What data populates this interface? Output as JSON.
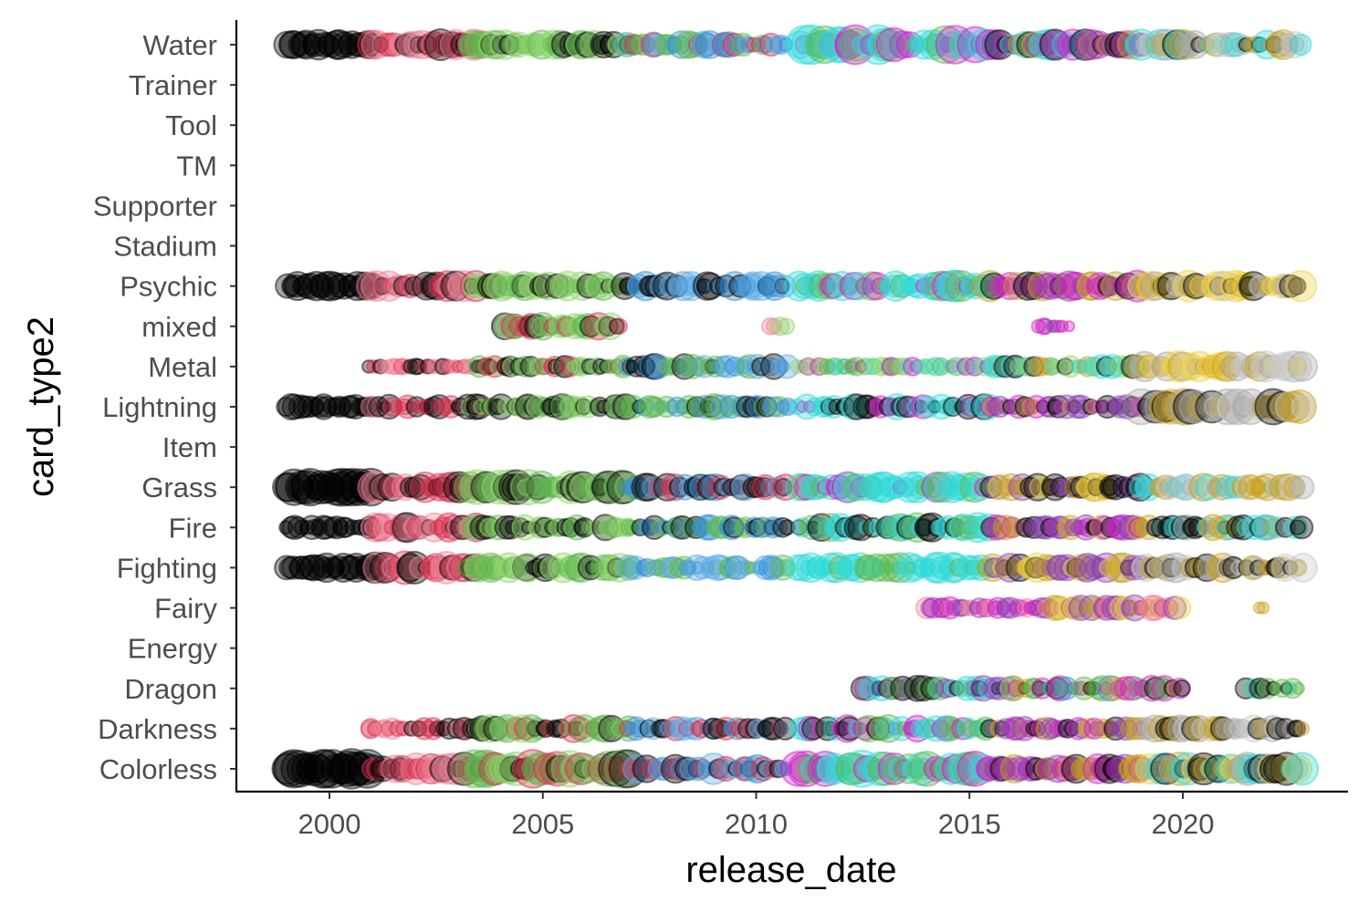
{
  "chart_data": {
    "type": "scatter",
    "title": "",
    "xlabel": "release_date",
    "ylabel": "card_type2",
    "xlim": [
      1997.8,
      2023.8
    ],
    "x_ticks": [
      2000,
      2005,
      2010,
      2015,
      2020
    ],
    "categories": [
      "Colorless",
      "Darkness",
      "Dragon",
      "Energy",
      "Fairy",
      "Fighting",
      "Fire",
      "Grass",
      "Item",
      "Lightning",
      "Metal",
      "mixed",
      "Psychic",
      "Stadium",
      "Supporter",
      "TM",
      "Tool",
      "Trainer",
      "Water"
    ],
    "grid": false,
    "legend": "none",
    "marker": "circle",
    "alpha": 0.35,
    "colors": {
      "black": "#000000",
      "red": "#d62d4b",
      "pink": "#f08096",
      "green": "#5cb84a",
      "lightgreen": "#8ed46a",
      "blue": "#2e8fd6",
      "lightblue": "#5aa8e8",
      "cyan": "#2dd9d9",
      "purple": "#8a3fb0",
      "magenta": "#cc1fc4",
      "gold": "#c8a020",
      "yellow": "#f0d040",
      "grey": "#a8a8a8",
      "silver": "#c8c8c8"
    },
    "series": [
      {
        "category": "Water",
        "segments": [
          {
            "x0": 1999.0,
            "x1": 2001.0,
            "colors": [
              "black"
            ],
            "rmin": 10,
            "rmax": 17
          },
          {
            "x0": 2001.0,
            "x1": 2003.5,
            "colors": [
              "red",
              "pink",
              "black"
            ],
            "rmin": 8,
            "rmax": 17
          },
          {
            "x0": 2003.3,
            "x1": 2007.0,
            "colors": [
              "green",
              "lightgreen",
              "black"
            ],
            "rmin": 8,
            "rmax": 16
          },
          {
            "x0": 2007.0,
            "x1": 2010.7,
            "colors": [
              "blue",
              "lightblue",
              "green",
              "red"
            ],
            "rmin": 7,
            "rmax": 15
          },
          {
            "x0": 2011.0,
            "x1": 2015.5,
            "colors": [
              "cyan",
              "cyan",
              "green",
              "magenta"
            ],
            "rmin": 7,
            "rmax": 22
          },
          {
            "x0": 2015.5,
            "x1": 2019.0,
            "colors": [
              "black",
              "purple",
              "gold",
              "magenta",
              "cyan"
            ],
            "rmin": 7,
            "rmax": 17
          },
          {
            "x0": 2019.0,
            "x1": 2022.8,
            "colors": [
              "grey",
              "silver",
              "cyan",
              "gold",
              "black"
            ],
            "rmin": 7,
            "rmax": 17
          }
        ]
      },
      {
        "category": "Psychic",
        "segments": [
          {
            "x0": 1999.0,
            "x1": 2001.0,
            "colors": [
              "black"
            ],
            "rmin": 10,
            "rmax": 16
          },
          {
            "x0": 2001.0,
            "x1": 2003.5,
            "colors": [
              "red",
              "pink",
              "black"
            ],
            "rmin": 8,
            "rmax": 17
          },
          {
            "x0": 2003.3,
            "x1": 2007.0,
            "colors": [
              "green",
              "lightgreen",
              "black"
            ],
            "rmin": 7,
            "rmax": 17
          },
          {
            "x0": 2007.0,
            "x1": 2010.7,
            "colors": [
              "blue",
              "lightblue",
              "black"
            ],
            "rmin": 7,
            "rmax": 16
          },
          {
            "x0": 2011.0,
            "x1": 2015.5,
            "colors": [
              "cyan",
              "cyan",
              "green",
              "magenta"
            ],
            "rmin": 7,
            "rmax": 17
          },
          {
            "x0": 2015.5,
            "x1": 2019.0,
            "colors": [
              "black",
              "purple",
              "gold",
              "magenta"
            ],
            "rmin": 8,
            "rmax": 17
          },
          {
            "x0": 2019.0,
            "x1": 2022.8,
            "colors": [
              "black",
              "yellow",
              "silver",
              "gold",
              "grey"
            ],
            "rmin": 8,
            "rmax": 17
          }
        ]
      },
      {
        "category": "mixed",
        "segments": [
          {
            "x0": 2004.0,
            "x1": 2006.8,
            "colors": [
              "lightgreen",
              "red",
              "black",
              "green"
            ],
            "rmin": 8,
            "rmax": 15
          },
          {
            "x0": 2010.3,
            "x1": 2010.7,
            "colors": [
              "pink",
              "lightgreen"
            ],
            "rmin": 8,
            "rmax": 10
          },
          {
            "x0": 2016.6,
            "x1": 2017.3,
            "colors": [
              "purple",
              "magenta"
            ],
            "rmin": 5,
            "rmax": 9
          }
        ]
      },
      {
        "category": "Metal",
        "segments": [
          {
            "x0": 2000.9,
            "x1": 2003.7,
            "colors": [
              "pink",
              "red",
              "black"
            ],
            "rmin": 6,
            "rmax": 9
          },
          {
            "x0": 2003.5,
            "x1": 2007.0,
            "colors": [
              "lightgreen",
              "green",
              "black",
              "red"
            ],
            "rmin": 6,
            "rmax": 12
          },
          {
            "x0": 2007.0,
            "x1": 2010.7,
            "colors": [
              "blue",
              "lightblue",
              "green",
              "black"
            ],
            "rmin": 6,
            "rmax": 14
          },
          {
            "x0": 2011.0,
            "x1": 2015.5,
            "colors": [
              "cyan",
              "green",
              "magenta",
              "lightgreen"
            ],
            "rmin": 6,
            "rmax": 10
          },
          {
            "x0": 2015.5,
            "x1": 2019.0,
            "colors": [
              "cyan",
              "gold",
              "black",
              "lightgreen"
            ],
            "rmin": 6,
            "rmax": 13
          },
          {
            "x0": 2019.0,
            "x1": 2022.8,
            "colors": [
              "grey",
              "silver",
              "gold",
              "yellow"
            ],
            "rmin": 7,
            "rmax": 17
          }
        ]
      },
      {
        "category": "Lightning",
        "segments": [
          {
            "x0": 1999.0,
            "x1": 2001.0,
            "colors": [
              "black"
            ],
            "rmin": 9,
            "rmax": 14
          },
          {
            "x0": 2001.0,
            "x1": 2003.5,
            "colors": [
              "pink",
              "red",
              "black"
            ],
            "rmin": 5,
            "rmax": 14
          },
          {
            "x0": 2003.3,
            "x1": 2007.0,
            "colors": [
              "green",
              "lightgreen",
              "black"
            ],
            "rmin": 6,
            "rmax": 14
          },
          {
            "x0": 2007.0,
            "x1": 2010.8,
            "colors": [
              "blue",
              "lightblue",
              "black",
              "green"
            ],
            "rmin": 6,
            "rmax": 14
          },
          {
            "x0": 2011.0,
            "x1": 2015.5,
            "colors": [
              "cyan",
              "cyan",
              "black",
              "magenta"
            ],
            "rmin": 6,
            "rmax": 14
          },
          {
            "x0": 2015.5,
            "x1": 2019.0,
            "colors": [
              "black",
              "purple",
              "gold",
              "magenta"
            ],
            "rmin": 6,
            "rmax": 13
          },
          {
            "x0": 2019.0,
            "x1": 2022.8,
            "colors": [
              "grey",
              "silver",
              "black",
              "gold"
            ],
            "rmin": 7,
            "rmax": 20
          }
        ]
      },
      {
        "category": "Grass",
        "segments": [
          {
            "x0": 1999.0,
            "x1": 2001.0,
            "colors": [
              "black"
            ],
            "rmin": 13,
            "rmax": 21
          },
          {
            "x0": 2001.0,
            "x1": 2003.5,
            "colors": [
              "red",
              "pink",
              "black"
            ],
            "rmin": 8,
            "rmax": 17
          },
          {
            "x0": 2003.3,
            "x1": 2007.0,
            "colors": [
              "green",
              "lightgreen",
              "black"
            ],
            "rmin": 8,
            "rmax": 19
          },
          {
            "x0": 2007.0,
            "x1": 2010.7,
            "colors": [
              "blue",
              "lightblue",
              "black",
              "red"
            ],
            "rmin": 7,
            "rmax": 15
          },
          {
            "x0": 2011.0,
            "x1": 2015.5,
            "colors": [
              "cyan",
              "cyan",
              "green",
              "magenta"
            ],
            "rmin": 7,
            "rmax": 17
          },
          {
            "x0": 2015.5,
            "x1": 2019.0,
            "colors": [
              "black",
              "purple",
              "gold",
              "yellow"
            ],
            "rmin": 7,
            "rmax": 16
          },
          {
            "x0": 2019.0,
            "x1": 2022.8,
            "colors": [
              "grey",
              "silver",
              "gold",
              "cyan"
            ],
            "rmin": 7,
            "rmax": 15
          }
        ]
      },
      {
        "category": "Fire",
        "segments": [
          {
            "x0": 1999.0,
            "x1": 2001.0,
            "colors": [
              "black"
            ],
            "rmin": 7,
            "rmax": 13
          },
          {
            "x0": 2001.0,
            "x1": 2003.5,
            "colors": [
              "pink",
              "red",
              "black"
            ],
            "rmin": 6,
            "rmax": 16
          },
          {
            "x0": 2003.3,
            "x1": 2007.0,
            "colors": [
              "green",
              "lightgreen",
              "black"
            ],
            "rmin": 6,
            "rmax": 14
          },
          {
            "x0": 2007.0,
            "x1": 2010.7,
            "colors": [
              "blue",
              "black",
              "green"
            ],
            "rmin": 6,
            "rmax": 14
          },
          {
            "x0": 2011.0,
            "x1": 2015.5,
            "colors": [
              "cyan",
              "cyan",
              "green",
              "black"
            ],
            "rmin": 6,
            "rmax": 16
          },
          {
            "x0": 2015.5,
            "x1": 2019.0,
            "colors": [
              "purple",
              "magenta",
              "gold",
              "black"
            ],
            "rmin": 7,
            "rmax": 14
          },
          {
            "x0": 2019.0,
            "x1": 2022.8,
            "colors": [
              "gold",
              "grey",
              "black",
              "cyan"
            ],
            "rmin": 7,
            "rmax": 14
          }
        ]
      },
      {
        "category": "Fighting",
        "segments": [
          {
            "x0": 1999.0,
            "x1": 2001.0,
            "colors": [
              "black"
            ],
            "rmin": 9,
            "rmax": 16
          },
          {
            "x0": 2001.0,
            "x1": 2003.5,
            "colors": [
              "red",
              "pink",
              "black"
            ],
            "rmin": 6,
            "rmax": 18
          },
          {
            "x0": 2003.3,
            "x1": 2007.0,
            "colors": [
              "green",
              "lightgreen",
              "black"
            ],
            "rmin": 6,
            "rmax": 16
          },
          {
            "x0": 2007.0,
            "x1": 2010.7,
            "colors": [
              "blue",
              "lightblue",
              "green"
            ],
            "rmin": 6,
            "rmax": 14
          },
          {
            "x0": 2011.0,
            "x1": 2015.5,
            "colors": [
              "cyan",
              "cyan",
              "green"
            ],
            "rmin": 6,
            "rmax": 17
          },
          {
            "x0": 2015.5,
            "x1": 2019.0,
            "colors": [
              "black",
              "purple",
              "yellow",
              "gold"
            ],
            "rmin": 7,
            "rmax": 16
          },
          {
            "x0": 2019.0,
            "x1": 2022.8,
            "colors": [
              "grey",
              "silver",
              "gold",
              "black"
            ],
            "rmin": 7,
            "rmax": 16
          }
        ]
      },
      {
        "category": "Fairy",
        "segments": [
          {
            "x0": 2014.0,
            "x1": 2016.8,
            "colors": [
              "magenta",
              "purple",
              "pink"
            ],
            "rmin": 6,
            "rmax": 12
          },
          {
            "x0": 2016.8,
            "x1": 2019.9,
            "colors": [
              "magenta",
              "gold",
              "yellow",
              "pink",
              "purple"
            ],
            "rmin": 7,
            "rmax": 14
          },
          {
            "x0": 2021.8,
            "x1": 2021.9,
            "colors": [
              "gold"
            ],
            "rmin": 6,
            "rmax": 7
          }
        ]
      },
      {
        "category": "Dragon",
        "segments": [
          {
            "x0": 2012.5,
            "x1": 2016.0,
            "colors": [
              "cyan",
              "green",
              "purple",
              "black"
            ],
            "rmin": 6,
            "rmax": 14
          },
          {
            "x0": 2016.0,
            "x1": 2020.0,
            "colors": [
              "magenta",
              "black",
              "gold",
              "blue",
              "green"
            ],
            "rmin": 6,
            "rmax": 14
          },
          {
            "x0": 2021.5,
            "x1": 2022.7,
            "colors": [
              "black",
              "green",
              "cyan"
            ],
            "rmin": 6,
            "rmax": 12
          }
        ]
      },
      {
        "category": "Darkness",
        "segments": [
          {
            "x0": 2000.9,
            "x1": 2003.7,
            "colors": [
              "pink",
              "red",
              "black"
            ],
            "rmin": 7,
            "rmax": 12
          },
          {
            "x0": 2003.5,
            "x1": 2007.0,
            "colors": [
              "lightgreen",
              "green",
              "black",
              "red"
            ],
            "rmin": 7,
            "rmax": 15
          },
          {
            "x0": 2007.0,
            "x1": 2010.7,
            "colors": [
              "blue",
              "lightblue",
              "black",
              "red"
            ],
            "rmin": 6,
            "rmax": 13
          },
          {
            "x0": 2011.0,
            "x1": 2015.5,
            "colors": [
              "cyan",
              "green",
              "magenta",
              "black"
            ],
            "rmin": 6,
            "rmax": 15
          },
          {
            "x0": 2015.5,
            "x1": 2019.0,
            "colors": [
              "purple",
              "black",
              "magenta",
              "gold"
            ],
            "rmin": 7,
            "rmax": 13
          },
          {
            "x0": 2019.0,
            "x1": 2022.8,
            "colors": [
              "grey",
              "black",
              "silver",
              "gold"
            ],
            "rmin": 7,
            "rmax": 15
          }
        ]
      },
      {
        "category": "Colorless",
        "segments": [
          {
            "x0": 1999.0,
            "x1": 2001.0,
            "colors": [
              "black"
            ],
            "rmin": 14,
            "rmax": 22
          },
          {
            "x0": 2001.0,
            "x1": 2003.5,
            "colors": [
              "red",
              "pink",
              "black"
            ],
            "rmin": 8,
            "rmax": 18
          },
          {
            "x0": 2003.3,
            "x1": 2007.0,
            "colors": [
              "green",
              "lightgreen",
              "black",
              "red"
            ],
            "rmin": 8,
            "rmax": 21
          },
          {
            "x0": 2007.0,
            "x1": 2010.7,
            "colors": [
              "blue",
              "lightblue",
              "black",
              "red"
            ],
            "rmin": 7,
            "rmax": 17
          },
          {
            "x0": 2011.0,
            "x1": 2015.5,
            "colors": [
              "cyan",
              "cyan",
              "magenta",
              "green"
            ],
            "rmin": 7,
            "rmax": 20
          },
          {
            "x0": 2015.5,
            "x1": 2019.0,
            "colors": [
              "black",
              "purple",
              "gold",
              "magenta"
            ],
            "rmin": 8,
            "rmax": 16
          },
          {
            "x0": 2019.0,
            "x1": 2022.8,
            "colors": [
              "black",
              "gold",
              "grey",
              "yellow",
              "cyan"
            ],
            "rmin": 8,
            "rmax": 18
          }
        ]
      }
    ]
  }
}
